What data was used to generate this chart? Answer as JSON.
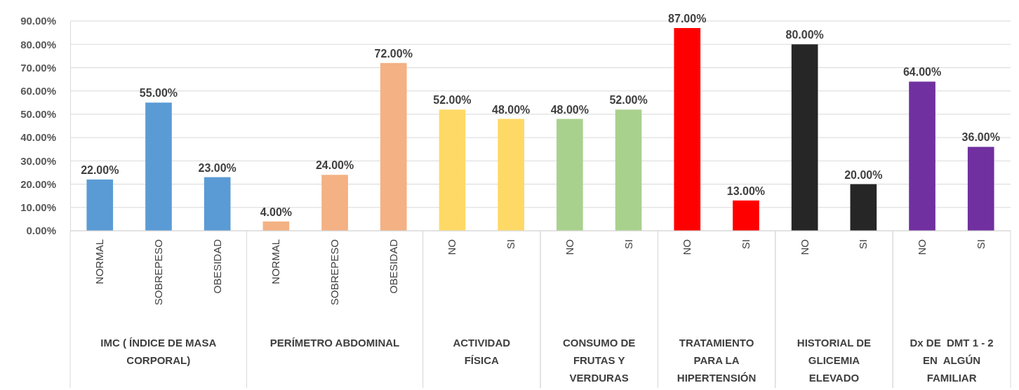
{
  "chart_data": {
    "type": "bar",
    "categories": [
      "NORMAL",
      "SOBREPESO",
      "OBESIDAD",
      "NORMAL",
      "SOBREPESO",
      "OBESIDAD",
      "NO",
      "SI",
      "NO",
      "SI",
      "NO",
      "SI",
      "NO",
      "SI",
      "NO",
      "SI"
    ],
    "values": [
      22,
      55,
      23,
      4,
      24,
      72,
      52,
      48,
      48,
      52,
      87,
      13,
      80,
      20,
      64,
      36
    ],
    "value_labels": [
      "22.00%",
      "55.00%",
      "23.00%",
      "4.00%",
      "24.00%",
      "72.00%",
      "52.00%",
      "48.00%",
      "48.00%",
      "52.00%",
      "87.00%",
      "13.00%",
      "80.00%",
      "20.00%",
      "64.00%",
      "36.00%"
    ],
    "colors": [
      "#5b9bd5",
      "#5b9bd5",
      "#5b9bd5",
      "#f4b183",
      "#f4b183",
      "#f4b183",
      "#ffd966",
      "#ffd966",
      "#a9d18e",
      "#a9d18e",
      "#ff0000",
      "#ff0000",
      "#262626",
      "#262626",
      "#7030a0",
      "#7030a0"
    ],
    "annotations": [
      "IMC ( ÍNDICE DE MASA CORPORAL)",
      "PERÍMETRO ABDOMINAL",
      "ACTIVIDAD FÍSICA",
      "CONSUMO DE FRUTAS Y VERDURAS",
      "TRATAMIENTO PARA LA HIPERTENSIÓN",
      "HISTORIAL DE GLICEMIA ELEVADO",
      "Dx DE  DMT 1 - 2 EN  ALGÚN FAMILIAR"
    ],
    "ylim": [
      0,
      90
    ],
    "yticks": [
      {
        "value": 0,
        "label": "0.00%"
      },
      {
        "value": 10,
        "label": "10.00%"
      },
      {
        "value": 20,
        "label": "20.00%"
      },
      {
        "value": 30,
        "label": "30.00%"
      },
      {
        "value": 40,
        "label": "40.00%"
      },
      {
        "value": 50,
        "label": "50.00%"
      },
      {
        "value": 60,
        "label": "60.00%"
      },
      {
        "value": 70,
        "label": "70.00%"
      },
      {
        "value": 80,
        "label": "80.00%"
      },
      {
        "value": 90,
        "label": "90.00%"
      }
    ],
    "grid": "y"
  }
}
